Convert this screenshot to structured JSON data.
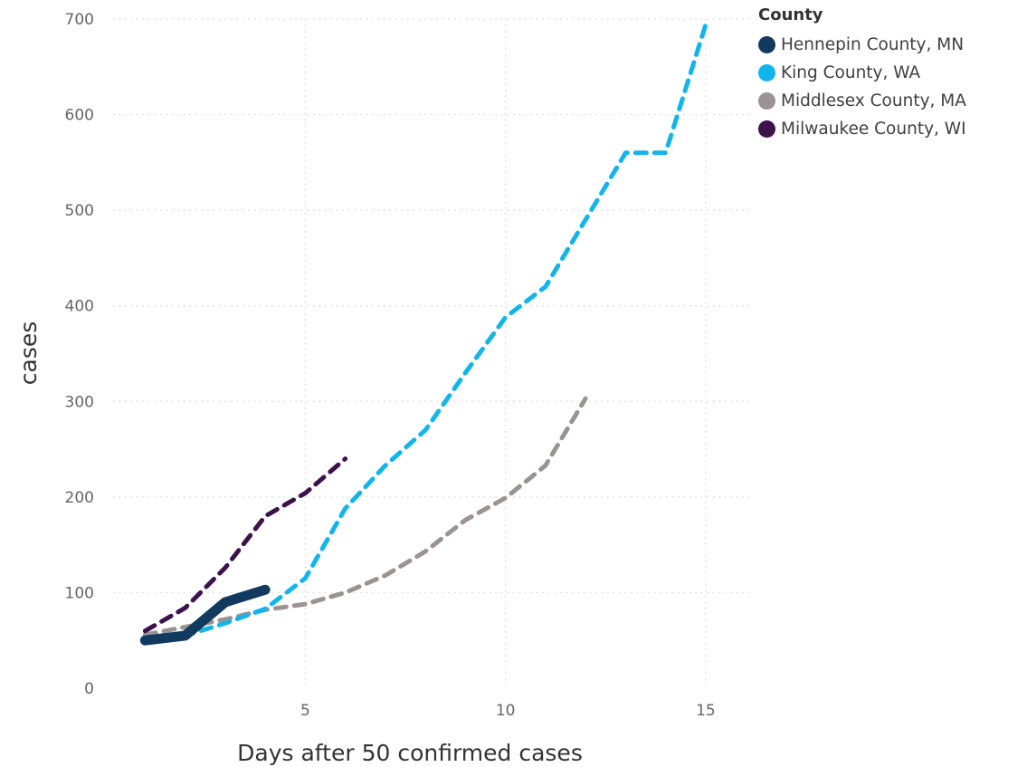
{
  "chart_data": {
    "type": "line",
    "xlabel": "Days after 50 confirmed cases",
    "ylabel": "cases",
    "xlim": [
      0.2,
      16.2
    ],
    "ylim": [
      0,
      700
    ],
    "x_ticks": [
      5,
      10,
      15
    ],
    "y_ticks": [
      0,
      100,
      200,
      300,
      400,
      500,
      600,
      700
    ],
    "grid": true,
    "legend": {
      "title": "County",
      "position": "top-right"
    },
    "series": [
      {
        "name": "Hennepin County, MN",
        "color": "#123a5e",
        "style": "solid",
        "x": [
          1,
          2,
          3,
          4
        ],
        "y": [
          50,
          55,
          90,
          103
        ]
      },
      {
        "name": "King County, WA",
        "color": "#12b5ea",
        "style": "dashed",
        "x": [
          1,
          2,
          3,
          4,
          5,
          6,
          7,
          8,
          9,
          10,
          11,
          12,
          13,
          14,
          15
        ],
        "y": [
          50,
          55,
          68,
          83,
          115,
          188,
          233,
          270,
          330,
          388,
          420,
          490,
          560,
          560,
          694
        ]
      },
      {
        "name": "Middlesex County, MA",
        "color": "#9a9392",
        "style": "dashed",
        "x": [
          1,
          2,
          3,
          4,
          5,
          6,
          7,
          8,
          9,
          10,
          11,
          12
        ],
        "y": [
          56,
          64,
          72,
          82,
          88,
          100,
          118,
          143,
          176,
          199,
          233,
          303
        ]
      },
      {
        "name": "Milwaukee County, WI",
        "color": "#3b1249",
        "style": "dashed",
        "x": [
          1,
          2,
          3,
          4,
          5,
          6
        ],
        "y": [
          60,
          84,
          126,
          180,
          204,
          240
        ]
      }
    ]
  }
}
